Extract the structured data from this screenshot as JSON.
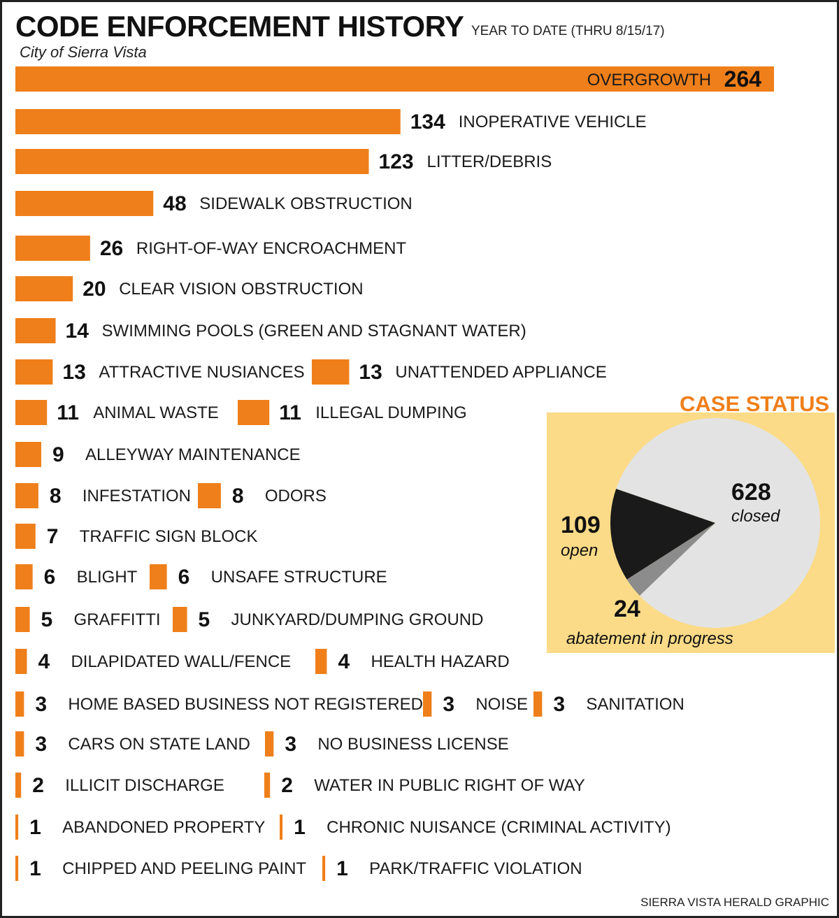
{
  "header": {
    "title": "CODE ENFORCEMENT HISTORY",
    "subtitle": "YEAR TO DATE (THRU 8/15/17)",
    "city": "City of Sierra Vista"
  },
  "footer": {
    "credit": "SIERRA VISTA HERALD GRAPHIC"
  },
  "colors": {
    "bar": "#ef7f1a",
    "panel": "#fbdb87",
    "closed": "#e3e3e3",
    "open": "#1a1a1a",
    "abatement": "#8c8c8c"
  },
  "chart_data": [
    {
      "type": "bar",
      "orientation": "horizontal",
      "title": "CODE ENFORCEMENT HISTORY",
      "subtitle": "YEAR TO DATE (THRU 8/15/17)",
      "categories": [
        "OVERGROWTH",
        "INOPERATIVE VEHICLE",
        "LITTER/DEBRIS",
        "SIDEWALK OBSTRUCTION",
        "RIGHT-OF-WAY ENCROACHMENT",
        "CLEAR VISION OBSTRUCTION",
        "SWIMMING POOLS (GREEN AND STAGNANT WATER)",
        "ATTRACTIVE NUSIANCES",
        "UNATTENDED APPLIANCE",
        "ANIMAL WASTE",
        "ILLEGAL DUMPING",
        "ALLEYWAY MAINTENANCE",
        "INFESTATION",
        "ODORS",
        "TRAFFIC SIGN BLOCK",
        "BLIGHT",
        "UNSAFE STRUCTURE",
        "GRAFFITTI",
        "JUNKYARD/DUMPING GROUND",
        "DILAPIDATED WALL/FENCE",
        "HEALTH HAZARD",
        "HOME BASED BUSINESS NOT REGISTERED",
        "NOISE",
        "SANITATION",
        "CARS ON STATE LAND",
        "NO BUSINESS LICENSE",
        "ILLICIT DISCHARGE",
        "WATER IN PUBLIC RIGHT OF WAY",
        "ABANDONED PROPERTY",
        "CHRONIC NUISANCE (CRIMINAL ACTIVITY)",
        "CHIPPED AND PEELING PAINT",
        "PARK/TRAFFIC VIOLATION"
      ],
      "values": [
        264,
        134,
        123,
        48,
        26,
        20,
        14,
        13,
        13,
        11,
        11,
        9,
        8,
        8,
        7,
        6,
        6,
        5,
        5,
        4,
        4,
        3,
        3,
        3,
        3,
        3,
        2,
        2,
        1,
        1,
        1,
        1
      ],
      "rows": [
        [
          {
            "label": "OVERGROWTH",
            "value": 264
          }
        ],
        [
          {
            "label": "INOPERATIVE VEHICLE",
            "value": 134
          }
        ],
        [
          {
            "label": "LITTER/DEBRIS",
            "value": 123
          }
        ],
        [
          {
            "label": "SIDEWALK OBSTRUCTION",
            "value": 48
          }
        ],
        [
          {
            "label": "RIGHT-OF-WAY ENCROACHMENT",
            "value": 26
          }
        ],
        [
          {
            "label": "CLEAR VISION OBSTRUCTION",
            "value": 20
          }
        ],
        [
          {
            "label": "SWIMMING POOLS (GREEN AND STAGNANT WATER)",
            "value": 14
          }
        ],
        [
          {
            "label": "ATTRACTIVE NUSIANCES",
            "value": 13
          },
          {
            "label": "UNATTENDED APPLIANCE",
            "value": 13
          }
        ],
        [
          {
            "label": "ANIMAL WASTE",
            "value": 11
          },
          {
            "label": "ILLEGAL DUMPING",
            "value": 11
          }
        ],
        [
          {
            "label": "ALLEYWAY MAINTENANCE",
            "value": 9
          }
        ],
        [
          {
            "label": "INFESTATION",
            "value": 8
          },
          {
            "label": "ODORS",
            "value": 8
          }
        ],
        [
          {
            "label": "TRAFFIC SIGN BLOCK",
            "value": 7
          }
        ],
        [
          {
            "label": "BLIGHT",
            "value": 6
          },
          {
            "label": "UNSAFE STRUCTURE",
            "value": 6
          }
        ],
        [
          {
            "label": "GRAFFITTI",
            "value": 5
          },
          {
            "label": "JUNKYARD/DUMPING GROUND",
            "value": 5
          }
        ],
        [
          {
            "label": "DILAPIDATED WALL/FENCE",
            "value": 4
          },
          {
            "label": "HEALTH HAZARD",
            "value": 4
          }
        ],
        [
          {
            "label": "HOME BASED BUSINESS NOT REGISTERED",
            "value": 3
          },
          {
            "label": "NOISE",
            "value": 3
          },
          {
            "label": "SANITATION",
            "value": 3
          }
        ],
        [
          {
            "label": "CARS ON STATE LAND",
            "value": 3
          },
          {
            "label": "NO BUSINESS LICENSE",
            "value": 3
          }
        ],
        [
          {
            "label": "ILLICIT DISCHARGE",
            "value": 2
          },
          {
            "label": "WATER IN PUBLIC RIGHT OF WAY",
            "value": 2
          }
        ],
        [
          {
            "label": "ABANDONED PROPERTY",
            "value": 1
          },
          {
            "label": "CHRONIC NUISANCE (CRIMINAL ACTIVITY)",
            "value": 1
          }
        ],
        [
          {
            "label": "CHIPPED AND PEELING PAINT",
            "value": 1
          },
          {
            "label": "PARK/TRAFFIC VIOLATION",
            "value": 1
          }
        ]
      ],
      "grid": false,
      "legend": "none"
    },
    {
      "type": "pie",
      "title": "CASE STATUS",
      "slices": [
        {
          "label": "closed",
          "value": 628,
          "color": "#e3e3e3"
        },
        {
          "label": "open",
          "value": 109,
          "color": "#1a1a1a"
        },
        {
          "label": "abatement in progress",
          "value": 24,
          "color": "#8c8c8c"
        }
      ]
    }
  ]
}
